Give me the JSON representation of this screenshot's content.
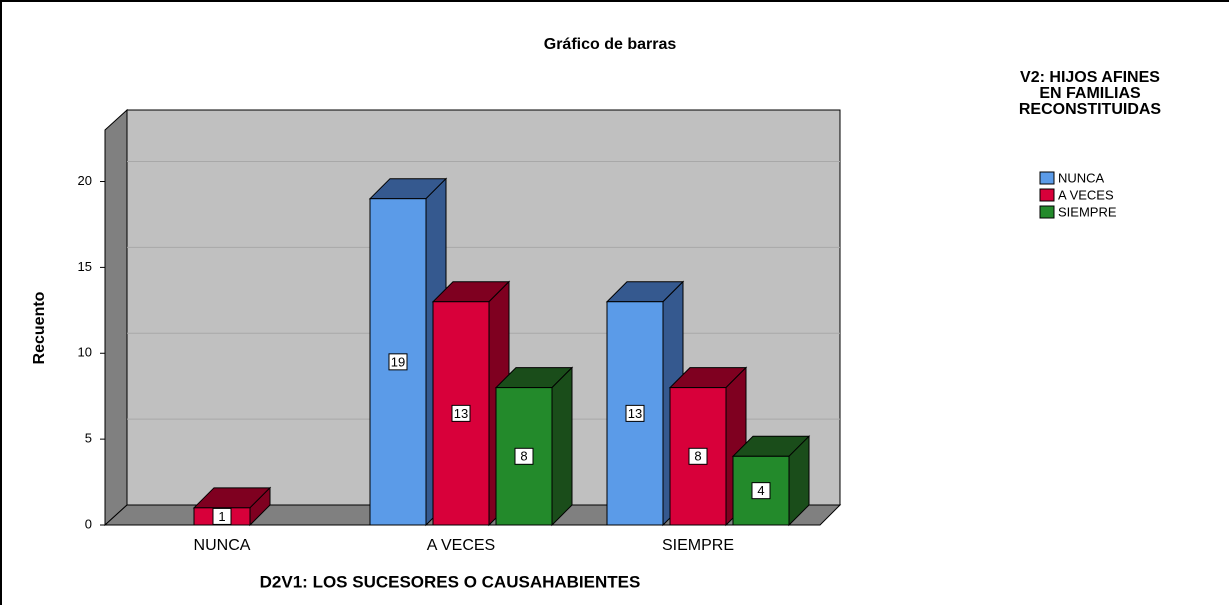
{
  "chart_data": {
    "type": "bar3d",
    "title": "Gráfico de barras",
    "x_label": "D2V1: LOS SUCESORES O CAUSAHABIENTES",
    "y_label": "Recuento",
    "legend_title": [
      "V2: HIJOS AFINES",
      "EN FAMILIAS",
      "RECONSTITUIDAS"
    ],
    "categories": [
      "NUNCA",
      "A VECES",
      "SIEMPRE"
    ],
    "series": [
      {
        "name": "NUNCA",
        "color": "#5b9be8",
        "side": "#35598f",
        "values": [
          null,
          19,
          13
        ]
      },
      {
        "name": "A VECES",
        "color": "#d8003a",
        "side": "#7f0020",
        "values": [
          1,
          13,
          8
        ]
      },
      {
        "name": "SIEMPRE",
        "color": "#238a2b",
        "side": "#1a4d1a",
        "values": [
          null,
          8,
          4
        ]
      }
    ],
    "ylim": [
      0,
      23
    ],
    "yticks": [
      0,
      5,
      10,
      15,
      20
    ],
    "grid": true,
    "legend": "right"
  }
}
